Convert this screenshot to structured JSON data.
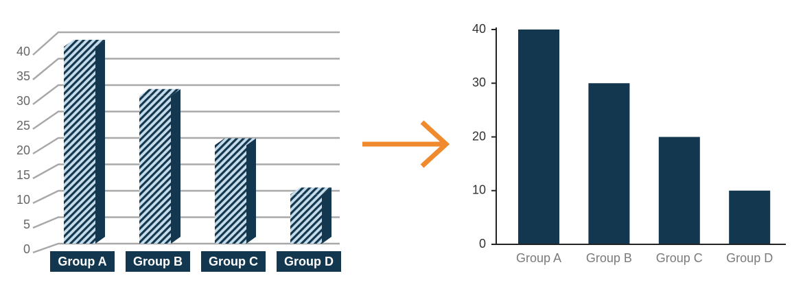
{
  "chart_data": [
    {
      "type": "bar3d",
      "categories": [
        "Group A",
        "Group B",
        "Group C",
        "Group D"
      ],
      "values": [
        40,
        30,
        20,
        10
      ],
      "color": "#12374f",
      "ylim": [
        0,
        40
      ],
      "yticks": [
        0,
        5,
        10,
        15,
        20,
        25,
        30,
        35,
        40
      ],
      "grid": true
    },
    {
      "type": "bar",
      "categories": [
        "Group A",
        "Group B",
        "Group C",
        "Group D"
      ],
      "values": [
        40,
        30,
        20,
        10
      ],
      "color": "#12374f",
      "ylim": [
        0,
        40
      ],
      "yticks": [
        0,
        10,
        20,
        30,
        40
      ],
      "grid": false
    }
  ]
}
